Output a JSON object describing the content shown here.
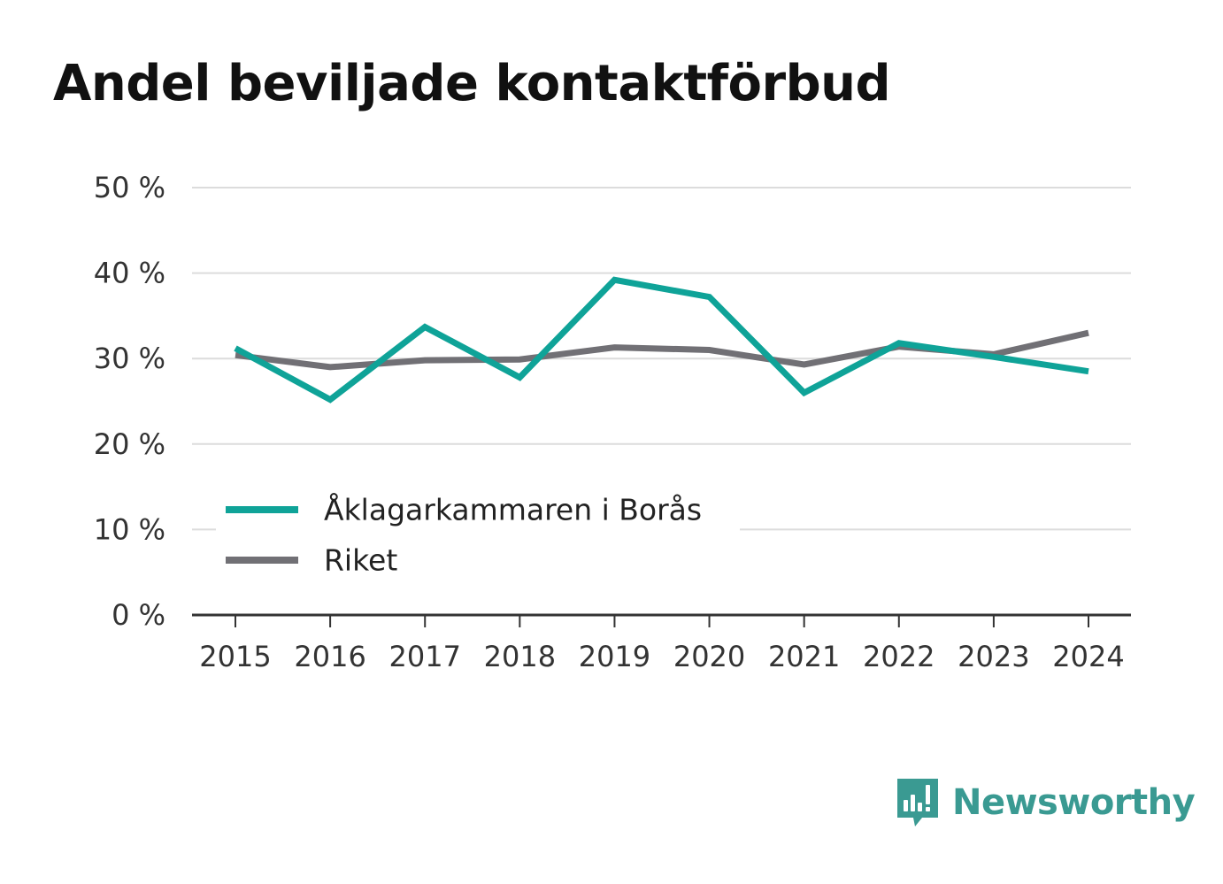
{
  "chart_data": {
    "type": "line",
    "title": "Andel beviljade kontaktförbud",
    "xlabel": "",
    "ylabel": "",
    "x": [
      "2015",
      "2016",
      "2017",
      "2018",
      "2019",
      "2020",
      "2021",
      "2022",
      "2023",
      "2024"
    ],
    "y_ticks": [
      "0 %",
      "10 %",
      "20 %",
      "30 %",
      "40 %",
      "50 %"
    ],
    "ylim": [
      0,
      50
    ],
    "grid": true,
    "legend_position": "bottom-left",
    "series": [
      {
        "name": "Åklagarkammaren i Borås",
        "color": "#0fa398",
        "values": [
          31.2,
          25.2,
          33.7,
          27.8,
          39.2,
          37.2,
          26.0,
          31.8,
          30.2,
          28.5
        ]
      },
      {
        "name": "Riket",
        "color": "#717075",
        "values": [
          30.4,
          29.0,
          29.8,
          29.9,
          31.3,
          31.0,
          29.3,
          31.4,
          30.5,
          33.0
        ]
      }
    ]
  },
  "brand": {
    "name": "Newsworthy",
    "color": "#3a9a92",
    "icon": "newsworthy-logo-icon"
  }
}
